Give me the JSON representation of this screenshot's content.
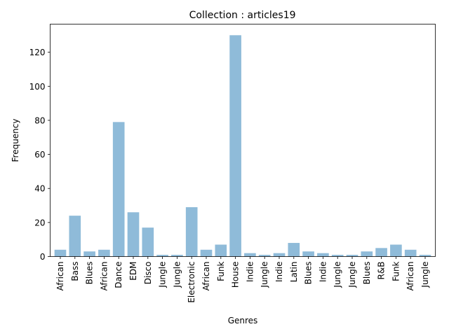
{
  "chart_data": {
    "type": "bar",
    "title": "Collection : articles19",
    "xlabel": "Genres",
    "ylabel": "Frequency",
    "ylim": [
      0,
      136.5
    ],
    "yticks": [
      0,
      20,
      40,
      60,
      80,
      100,
      120
    ],
    "bar_color": "#1f77b4",
    "bar_opacity": 0.5,
    "grid": false,
    "categories": [
      "African",
      "Bass",
      "Blues",
      "African",
      "Dance",
      "EDM",
      "Disco",
      "Jungle",
      "Jungle",
      "Electronic",
      "African",
      "Funk",
      "House",
      "Indie",
      "Jungle",
      "Indie",
      "Latin",
      "Blues",
      "Indie",
      "Jungle",
      "Jungle",
      "Blues",
      "R&B",
      "Funk",
      "African",
      "Jungle"
    ],
    "values": [
      4,
      24,
      3,
      4,
      79,
      26,
      17,
      1,
      1,
      29,
      4,
      7,
      130,
      2,
      1,
      2,
      8,
      3,
      2,
      1,
      1,
      3,
      5,
      7,
      4,
      1
    ]
  }
}
